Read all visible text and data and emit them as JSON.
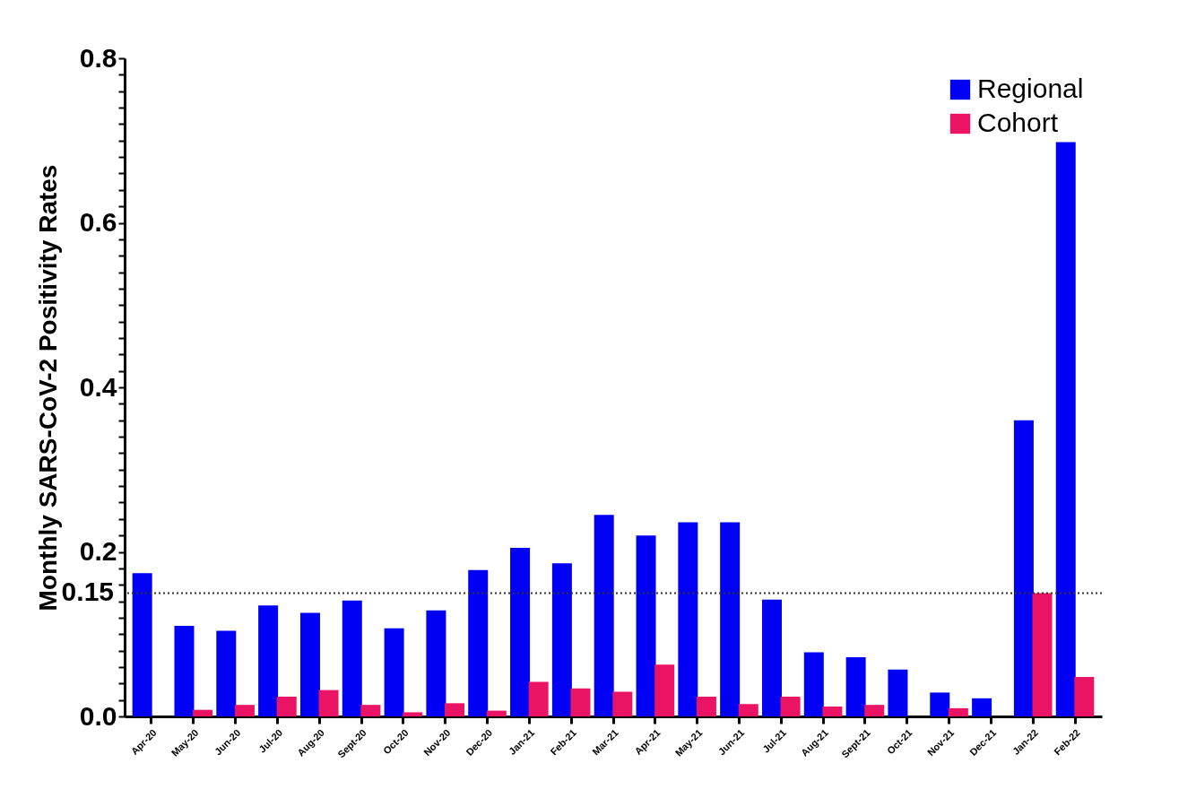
{
  "chart_data": {
    "type": "bar",
    "ylabel": "Monthly SARS-CoV-2 Positivity Rates",
    "categories": [
      "Apr-20",
      "May-20",
      "Jun-20",
      "Jul-20",
      "Aug-20",
      "Sept-20",
      "Oct-20",
      "Nov-20",
      "Dec-20",
      "Jan-21",
      "Feb-21",
      "Mar-21",
      "Apr-21",
      "May-21",
      "Jun-21",
      "Jul-21",
      "Aug-21",
      "Sept-21",
      "Oct-21",
      "Nov-21",
      "Dec-21",
      "Jan-22",
      "Feb-22"
    ],
    "series": [
      {
        "name": "Regional",
        "color": "#0000f5",
        "values": [
          0.174,
          0.11,
          0.104,
          0.135,
          0.126,
          0.141,
          0.107,
          0.129,
          0.178,
          0.205,
          0.186,
          0.245,
          0.22,
          0.236,
          0.236,
          0.142,
          0.078,
          0.072,
          0.057,
          0.029,
          0.022,
          0.36,
          0.698
        ]
      },
      {
        "name": "Cohort",
        "color": "#eb1464",
        "values": [
          null,
          0.008,
          0.014,
          0.024,
          0.032,
          0.014,
          0.005,
          0.016,
          0.007,
          0.042,
          0.034,
          0.03,
          0.063,
          0.024,
          0.015,
          0.024,
          0.012,
          0.014,
          null,
          0.01,
          null,
          0.15,
          0.048
        ]
      }
    ],
    "ylim": [
      0,
      0.8
    ],
    "yticks": [
      {
        "value": 0,
        "label": "0.0"
      },
      {
        "value": 0.02,
        "label": null
      },
      {
        "value": 0.04,
        "label": null
      },
      {
        "value": 0.06,
        "label": null
      },
      {
        "value": 0.08,
        "label": null
      },
      {
        "value": 0.1,
        "label": null
      },
      {
        "value": 0.12,
        "label": null
      },
      {
        "value": 0.14,
        "label": null
      },
      {
        "value": 0.16,
        "label": null
      },
      {
        "value": 0.18,
        "label": null
      },
      0.2,
      {
        "value": 0.22,
        "label": null
      },
      {
        "value": 0.24,
        "label": null
      },
      {
        "value": 0.26,
        "label": null
      },
      {
        "value": 0.28,
        "label": null
      },
      {
        "value": 0.3,
        "label": null
      },
      {
        "value": 0.32,
        "label": null
      },
      {
        "value": 0.34,
        "label": null
      },
      {
        "value": 0.36,
        "label": null
      },
      {
        "value": 0.38,
        "label": null
      },
      0.4,
      {
        "value": 0.42,
        "label": null
      },
      {
        "value": 0.44,
        "label": null
      },
      {
        "value": 0.46,
        "label": null
      },
      {
        "value": 0.48,
        "label": null
      },
      {
        "value": 0.5,
        "label": null
      },
      {
        "value": 0.52,
        "label": null
      },
      {
        "value": 0.54,
        "label": null
      },
      {
        "value": 0.56,
        "label": null
      },
      {
        "value": 0.58,
        "label": null
      },
      0.6,
      {
        "value": 0.62,
        "label": null
      },
      {
        "value": 0.64,
        "label": null
      },
      {
        "value": 0.66,
        "label": null
      },
      {
        "value": 0.68,
        "label": null
      },
      {
        "value": 0.7,
        "label": null
      },
      {
        "value": 0.72,
        "label": null
      },
      {
        "value": 0.74,
        "label": null
      },
      {
        "value": 0.76,
        "label": null
      },
      {
        "value": 0.78,
        "label": null
      },
      0.8
    ],
    "ref_lines": [
      {
        "axis": "y",
        "value": 0.15,
        "label": "0.15",
        "color": "#333333",
        "line_style": "dotted"
      }
    ],
    "grid": false,
    "legend": "top right"
  }
}
